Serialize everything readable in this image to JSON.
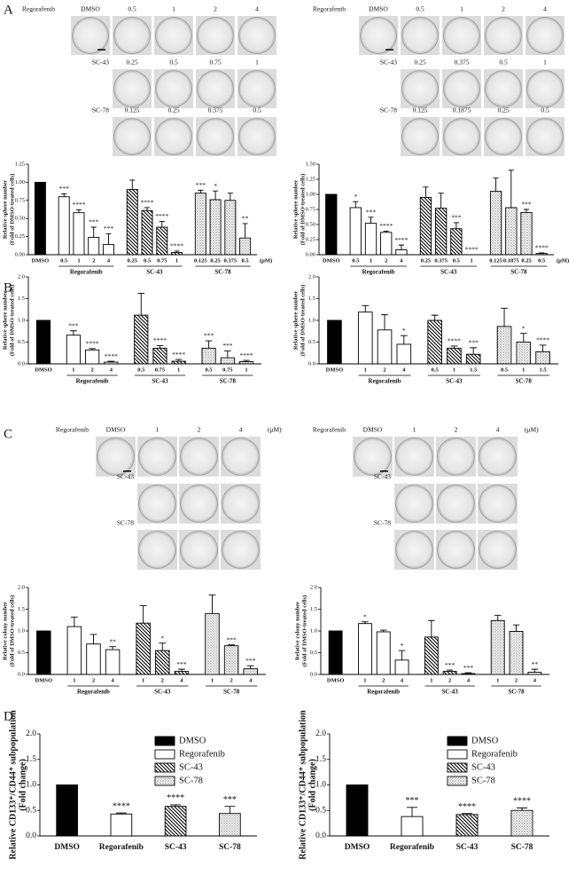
{
  "panel_labels": [
    "A",
    "B",
    "C",
    "D"
  ],
  "photo_panels": [
    {
      "label": "Regorafenib",
      "columns": [
        "DMSO",
        "0.5",
        "1",
        "2",
        "4"
      ],
      "rows": [
        {
          "label": "SC-43",
          "columns": [
            "0.25",
            "0.5",
            "0.75",
            "1"
          ]
        },
        {
          "label": "SC-78",
          "columns": [
            "0.125",
            "0.25",
            "0.375",
            "0.5"
          ]
        }
      ]
    },
    {
      "label": "Regorafenib",
      "columns": [
        "DMSO",
        "0.5",
        "1",
        "2",
        "4"
      ],
      "rows": [
        {
          "label": "SC-43",
          "columns": [
            "0.25",
            "0.375",
            "0.5",
            "1"
          ]
        },
        {
          "label": "SC-78",
          "columns": [
            "0.125",
            "0.1875",
            "0.25",
            "0.5"
          ]
        }
      ]
    },
    {
      "label": "Regorafenib",
      "columns": [
        "DMSO",
        "1",
        "2",
        "4"
      ],
      "unit": "(μM)",
      "rows": [
        {
          "label": "SC-43"
        },
        {
          "label": "SC-78"
        }
      ]
    },
    {
      "label": "Regorafenib",
      "columns": [
        "DMSO",
        "1",
        "2",
        "4"
      ],
      "unit": "(μM)",
      "rows": [
        {
          "label": "SC-43"
        },
        {
          "label": "SC-78"
        }
      ]
    }
  ],
  "chart_data": [
    {
      "type": "bar",
      "ylabel": [
        "Relative sphere number",
        "(Fold of DMSO-treated cells)"
      ],
      "unit": "(μM)",
      "ylim": [
        0,
        1.25
      ],
      "yticks": [
        {
          "value": 0,
          "label": "0.00"
        },
        0.25,
        {
          "value": 0.5,
          "label": "0.50"
        },
        0.75,
        {
          "value": 1,
          "label": "1.00"
        },
        1.25
      ],
      "series": [
        {
          "fill": "#000000",
          "categories": [
            "DMSO"
          ],
          "values": [
            1.0
          ]
        },
        {
          "name": "Regorafenib",
          "fill": "#ffffff",
          "categories": [
            "0.5",
            "1",
            "2",
            "4"
          ],
          "values": [
            0.8,
            0.58,
            0.24,
            0.14
          ],
          "errors": [
            0.04,
            0.04,
            0.14,
            0.15
          ],
          "significance": [
            "***",
            "****",
            "***",
            "***"
          ]
        },
        {
          "name": "SC-43",
          "fill": "hatch",
          "categories": [
            "0.25",
            "0.5",
            "0.75",
            "1"
          ],
          "values": [
            0.9,
            0.61,
            0.38,
            0.03
          ],
          "errors": [
            0.13,
            0.04,
            0.08,
            0.02
          ],
          "significance": [
            null,
            "****",
            "****",
            "****"
          ]
        },
        {
          "name": "SC-78",
          "fill": "dots",
          "categories": [
            "0.125",
            "0.25",
            "0.375",
            "0.5"
          ],
          "values": [
            0.85,
            0.76,
            0.75,
            0.23
          ],
          "errors": [
            0.04,
            0.12,
            0.1,
            0.2
          ],
          "significance": [
            "***",
            "*",
            null,
            "**"
          ]
        }
      ]
    },
    {
      "type": "bar",
      "ylabel": [
        "Relative sphere number",
        "(Fold of DMSO-treated cells)"
      ],
      "unit": "(μM)",
      "ylim": [
        0,
        1.5
      ],
      "yticks": [
        {
          "value": 0,
          "label": "0.00"
        },
        0.25,
        {
          "value": 0.5,
          "label": "0.50"
        },
        0.75,
        {
          "value": 1,
          "label": "1.00"
        },
        1.25,
        {
          "value": 1.5,
          "label": "1.50"
        }
      ],
      "series": [
        {
          "fill": "#000000",
          "categories": [
            "DMSO"
          ],
          "values": [
            1.0
          ]
        },
        {
          "name": "Regorafenib",
          "fill": "#ffffff",
          "categories": [
            "0.5",
            "1",
            "2",
            "4"
          ],
          "values": [
            0.78,
            0.52,
            0.37,
            0.08
          ],
          "errors": [
            0.1,
            0.1,
            0.02,
            0.08
          ],
          "significance": [
            "*",
            "***",
            "****",
            "****"
          ]
        },
        {
          "name": "SC-43",
          "fill": "hatch",
          "categories": [
            "0.25",
            "0.375",
            "0.5",
            "1"
          ],
          "values": [
            0.95,
            0.77,
            0.43,
            0.0
          ],
          "errors": [
            0.17,
            0.25,
            0.1,
            0.0
          ],
          "significance": [
            null,
            null,
            "***",
            "****"
          ]
        },
        {
          "name": "SC-78",
          "fill": "dots",
          "categories": [
            "0.125",
            "0.1875",
            "0.25",
            "0.5"
          ],
          "values": [
            1.05,
            0.78,
            0.7,
            0.02
          ],
          "errors": [
            0.22,
            0.62,
            0.05,
            0.01
          ],
          "significance": [
            null,
            null,
            "***",
            "****"
          ]
        }
      ]
    },
    {
      "type": "bar",
      "ylabel": [
        "Relative sphere number",
        "(Fold of DMSO-treated cells)"
      ],
      "ylim": [
        0,
        2.0
      ],
      "yticks": [
        {
          "value": 0,
          "label": "0.0"
        },
        0.5,
        {
          "value": 1,
          "label": "1.0"
        },
        1.5,
        {
          "value": 2,
          "label": "2.0"
        }
      ],
      "series": [
        {
          "fill": "#000000",
          "categories": [
            "DMSO"
          ],
          "values": [
            1.0
          ]
        },
        {
          "name": "Regorafenib",
          "fill": "#ffffff",
          "categories": [
            "1",
            "2",
            "4"
          ],
          "values": [
            0.66,
            0.32,
            0.04
          ],
          "errors": [
            0.1,
            0.03,
            0.02
          ],
          "significance": [
            "***",
            "****",
            "****"
          ]
        },
        {
          "name": "SC-43",
          "fill": "hatch",
          "categories": [
            "0.5",
            "0.75",
            "1"
          ],
          "values": [
            1.12,
            0.36,
            0.06
          ],
          "errors": [
            0.5,
            0.06,
            0.04
          ],
          "significance": [
            null,
            "****",
            "****"
          ]
        },
        {
          "name": "SC-78",
          "fill": "dots",
          "categories": [
            "0.5",
            "0.75",
            "1"
          ],
          "values": [
            0.36,
            0.14,
            0.05
          ],
          "errors": [
            0.17,
            0.16,
            0.03
          ],
          "significance": [
            "***",
            "***",
            "****"
          ]
        }
      ]
    },
    {
      "type": "bar",
      "ylabel": [
        "Relative sphere number",
        "(Fold of DMSO-treated cells)"
      ],
      "ylim": [
        0,
        2.0
      ],
      "yticks": [
        {
          "value": 0,
          "label": "0.0"
        },
        0.5,
        {
          "value": 1,
          "label": "1.0"
        },
        1.5,
        {
          "value": 2,
          "label": "2.0"
        }
      ],
      "series": [
        {
          "fill": "#000000",
          "categories": [
            "DMSO"
          ],
          "values": [
            1.0
          ]
        },
        {
          "name": "Regorafenib",
          "fill": "#ffffff",
          "categories": [
            "1",
            "2",
            "4"
          ],
          "values": [
            1.19,
            0.78,
            0.45
          ],
          "errors": [
            0.15,
            0.35,
            0.2
          ],
          "significance": [
            null,
            null,
            "*"
          ]
        },
        {
          "name": "SC-43",
          "fill": "hatch",
          "categories": [
            "0.5",
            "1",
            "1.5"
          ],
          "values": [
            1.0,
            0.36,
            0.22
          ],
          "errors": [
            0.12,
            0.05,
            0.15
          ],
          "significance": [
            null,
            "****",
            "***"
          ]
        },
        {
          "name": "SC-78",
          "fill": "dots",
          "categories": [
            "0.5",
            "1",
            "1.5"
          ],
          "values": [
            0.86,
            0.5,
            0.28
          ],
          "errors": [
            0.42,
            0.2,
            0.15
          ],
          "significance": [
            null,
            "*",
            "****"
          ]
        }
      ]
    },
    {
      "type": "bar",
      "ylabel": [
        "Relative colony number",
        "(Fold of DMSO-treated cells)"
      ],
      "ylim": [
        0,
        2.0
      ],
      "yticks": [
        {
          "value": 0,
          "label": "0.0"
        },
        0.5,
        {
          "value": 1,
          "label": "1.0"
        },
        1.5,
        {
          "value": 2,
          "label": "2.0"
        }
      ],
      "series": [
        {
          "fill": "#000000",
          "categories": [
            "DMSO"
          ],
          "values": [
            1.0
          ]
        },
        {
          "name": "Regorafenib",
          "fill": "#ffffff",
          "categories": [
            "1",
            "2",
            "4"
          ],
          "values": [
            1.1,
            0.7,
            0.57
          ],
          "errors": [
            0.22,
            0.22,
            0.07
          ],
          "significance": [
            null,
            null,
            "**"
          ]
        },
        {
          "name": "SC-43",
          "fill": "hatch",
          "categories": [
            "1",
            "2",
            "4"
          ],
          "values": [
            1.18,
            0.55,
            0.07
          ],
          "errors": [
            0.4,
            0.17,
            0.05
          ],
          "significance": [
            null,
            "*",
            "***"
          ]
        },
        {
          "name": "SC-78",
          "fill": "dots",
          "categories": [
            "1",
            "2",
            "4"
          ],
          "values": [
            1.4,
            0.66,
            0.13
          ],
          "errors": [
            0.43,
            0.02,
            0.07
          ],
          "significance": [
            null,
            "***",
            "***"
          ]
        }
      ]
    },
    {
      "type": "bar",
      "ylabel": [
        "Relative colony number",
        "(Fold of DMSO-treated cells)"
      ],
      "ylim": [
        0,
        2.0
      ],
      "yticks": [
        {
          "value": 0,
          "label": "0.0"
        },
        0.5,
        {
          "value": 1,
          "label": "1.0"
        },
        1.5,
        {
          "value": 2,
          "label": "2.0"
        }
      ],
      "series": [
        {
          "fill": "#000000",
          "categories": [
            "DMSO"
          ],
          "values": [
            1.0
          ]
        },
        {
          "name": "Regorafenib",
          "fill": "#ffffff",
          "categories": [
            "1",
            "2",
            "4"
          ],
          "values": [
            1.17,
            0.98,
            0.33
          ],
          "errors": [
            0.04,
            0.04,
            0.22
          ],
          "significance": [
            "*",
            null,
            "*"
          ]
        },
        {
          "name": "SC-43",
          "fill": "hatch",
          "categories": [
            "1",
            "2",
            "4"
          ],
          "values": [
            0.86,
            0.07,
            0.02
          ],
          "errors": [
            0.38,
            0.03,
            0.02
          ],
          "significance": [
            null,
            "***",
            "***"
          ]
        },
        {
          "name": "SC-78",
          "fill": "dots",
          "categories": [
            "1",
            "2",
            "4"
          ],
          "values": [
            1.24,
            0.99,
            0.05
          ],
          "errors": [
            0.12,
            0.15,
            0.07
          ],
          "significance": [
            null,
            null,
            "**"
          ]
        }
      ]
    },
    {
      "type": "bar",
      "ylabel": [
        "Relative CD133⁺/CD44⁺ subpopulation",
        "(Fold change)"
      ],
      "legend": "upper right",
      "ylim": [
        0,
        2.0
      ],
      "yticks": [
        {
          "value": 0,
          "label": "0.0"
        },
        0.5,
        {
          "value": 1,
          "label": "1.0"
        },
        1.5,
        {
          "value": 2,
          "label": "2.0"
        }
      ],
      "series": [
        {
          "name": "DMSO",
          "fill": "#000000",
          "categories": [
            "DMSO"
          ],
          "values": [
            1.0
          ]
        },
        {
          "name": "Regorafenib",
          "fill": "#ffffff",
          "categories": [
            "Regorafenib"
          ],
          "values": [
            0.43
          ],
          "errors": [
            0.02
          ],
          "significance": [
            "****"
          ]
        },
        {
          "name": "SC-43",
          "fill": "hatch",
          "categories": [
            "SC-43"
          ],
          "values": [
            0.58
          ],
          "errors": [
            0.03
          ],
          "significance": [
            "****"
          ]
        },
        {
          "name": "SC-78",
          "fill": "dots",
          "categories": [
            "SC-78"
          ],
          "values": [
            0.44
          ],
          "errors": [
            0.14
          ],
          "significance": [
            "***"
          ]
        }
      ]
    },
    {
      "type": "bar",
      "ylabel": [
        "Relative CD133⁺/CD44⁺ subpopulation",
        "(Fold change)"
      ],
      "legend": "upper right",
      "ylim": [
        0,
        2.0
      ],
      "yticks": [
        {
          "value": 0,
          "label": "0.0"
        },
        0.5,
        {
          "value": 1,
          "label": "1.0"
        },
        1.5,
        {
          "value": 2,
          "label": "2.0"
        }
      ],
      "series": [
        {
          "name": "DMSO",
          "fill": "#000000",
          "categories": [
            "DMSO"
          ],
          "values": [
            1.0
          ]
        },
        {
          "name": "Regorafenib",
          "fill": "#ffffff",
          "categories": [
            "Regorafenib"
          ],
          "values": [
            0.38
          ],
          "errors": [
            0.18
          ],
          "significance": [
            "***"
          ]
        },
        {
          "name": "SC-43",
          "fill": "hatch",
          "categories": [
            "SC-43"
          ],
          "values": [
            0.42
          ],
          "errors": [
            0.02
          ],
          "significance": [
            "****"
          ]
        },
        {
          "name": "SC-78",
          "fill": "dots",
          "categories": [
            "SC-78"
          ],
          "values": [
            0.5
          ],
          "errors": [
            0.05
          ],
          "significance": [
            "****"
          ]
        }
      ]
    }
  ]
}
